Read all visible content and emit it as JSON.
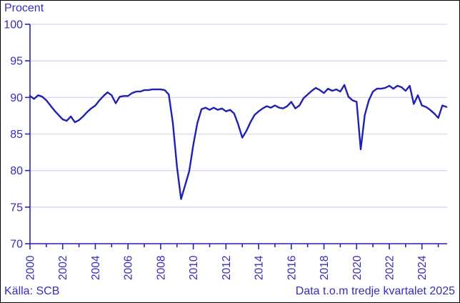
{
  "colors": {
    "accent_text": "#352db6",
    "axis": "#2a24ad",
    "line": "#2020b2",
    "gridline": "#d8d8f0",
    "background": "#ffffff",
    "border": "#000000"
  },
  "footer": {
    "source": "Källa: SCB",
    "note": "Data t.o.m tredje kvartalet 2025"
  },
  "chart_data": {
    "type": "line",
    "title": "",
    "ylabel": "Procent",
    "xlabel": "",
    "legend": "none",
    "grid": "horizontal",
    "ylim": [
      70,
      100
    ],
    "y_ticks": [
      100,
      95,
      90,
      85,
      80,
      75,
      70
    ],
    "x_tick_labels": [
      "2000",
      "2002",
      "2004",
      "2006",
      "2008",
      "2010",
      "2012",
      "2014",
      "2016",
      "2018",
      "2020",
      "2022",
      "2024"
    ],
    "x_minor_tick_years": 26,
    "x_start": "2000 Q1",
    "x_end": "2025 Q3",
    "frequency": "quarterly",
    "values": [
      90.2,
      89.8,
      90.3,
      90.1,
      89.6,
      88.9,
      88.2,
      87.6,
      87.0,
      86.8,
      87.4,
      86.6,
      86.9,
      87.4,
      88.0,
      88.5,
      88.9,
      89.6,
      90.2,
      90.7,
      90.3,
      89.2,
      90.1,
      90.2,
      90.2,
      90.6,
      90.8,
      90.8,
      91.0,
      91.0,
      91.1,
      91.1,
      91.1,
      91.0,
      90.4,
      86.5,
      80.5,
      76.1,
      78.0,
      79.9,
      83.5,
      86.5,
      88.4,
      88.6,
      88.3,
      88.6,
      88.3,
      88.5,
      88.1,
      88.3,
      87.8,
      86.3,
      84.5,
      85.4,
      86.6,
      87.6,
      88.1,
      88.5,
      88.8,
      88.6,
      88.9,
      88.6,
      88.5,
      88.8,
      89.4,
      88.5,
      88.9,
      89.9,
      90.4,
      90.9,
      91.3,
      91.0,
      90.6,
      91.2,
      90.9,
      91.1,
      90.8,
      91.7,
      90.1,
      89.6,
      89.4,
      82.9,
      87.6,
      89.6,
      90.8,
      91.2,
      91.2,
      91.3,
      91.6,
      91.2,
      91.6,
      91.4,
      90.9,
      91.6,
      89.1,
      90.3,
      88.9,
      88.7,
      88.3,
      87.8,
      87.2,
      88.9,
      88.7
    ]
  }
}
